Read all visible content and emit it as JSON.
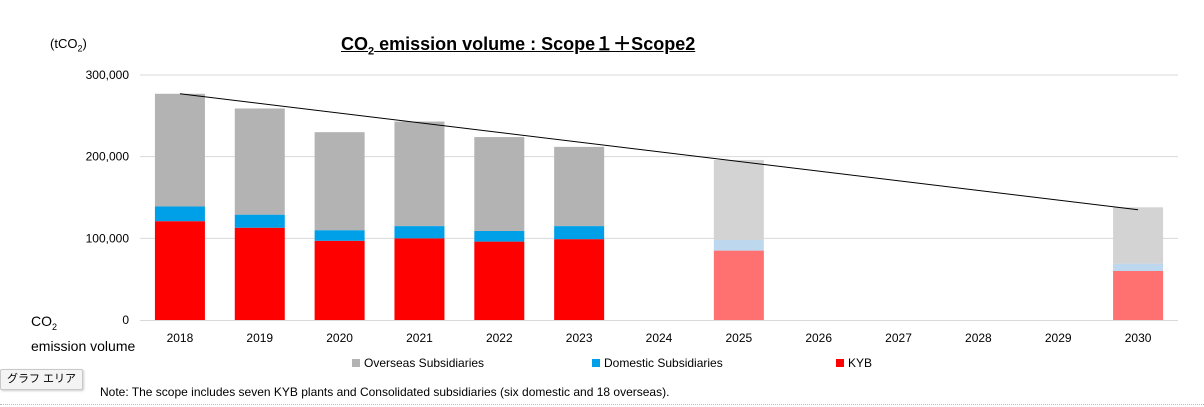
{
  "chart_data": {
    "type": "bar",
    "stacked": true,
    "title_parts": {
      "pre": "CO",
      "sub": "2",
      "post": " emission volume : Scope１＋Scope2"
    },
    "unit_label": {
      "pre": "(tCO",
      "sub": "2",
      "post": ")"
    },
    "ylabel": {
      "line1_pre": "CO",
      "line1_sub": "2",
      "line2": "emission volume"
    },
    "categories": [
      "2018",
      "2019",
      "2020",
      "2021",
      "2022",
      "2023",
      "2024",
      "2025",
      "2026",
      "2027",
      "2028",
      "2029",
      "2030"
    ],
    "ylim": [
      0,
      300000
    ],
    "yticks": [
      0,
      100000,
      200000,
      300000
    ],
    "ytick_labels": [
      "0",
      "100,000",
      "200,000",
      "300,000"
    ],
    "grid": true,
    "legend_position": "bottom",
    "series": [
      {
        "name": "KYB",
        "color": "#ff0000",
        "target_color": "#ff7070",
        "values": [
          121000,
          113000,
          97000,
          100000,
          96000,
          99000,
          null,
          85000,
          null,
          null,
          null,
          null,
          60000
        ]
      },
      {
        "name": "Domestic Subsidiaries",
        "color": "#00a0e9",
        "target_color": "#bdd7ee",
        "values": [
          18000,
          16000,
          13000,
          15000,
          13000,
          16000,
          null,
          13000,
          null,
          null,
          null,
          null,
          9000
        ]
      },
      {
        "name": "Overseas Subsidiaries",
        "color": "#b3b3b3",
        "target_color": "#d3d3d3",
        "values": [
          138000,
          130000,
          120000,
          128000,
          115000,
          97000,
          null,
          98000,
          null,
          null,
          null,
          null,
          69000
        ]
      }
    ],
    "target_categories": [
      "2025",
      "2030"
    ],
    "trend_line": {
      "from": {
        "x": "2018",
        "y": 277000
      },
      "to": {
        "x": "2030",
        "y": 135000
      },
      "color": "#000000"
    },
    "legend_order": [
      "Overseas Subsidiaries",
      "Domestic Subsidiaries",
      "KYB"
    ]
  },
  "note": "Note: The scope includes seven KYB plants and Consolidated subsidiaries (six domestic and 18 overseas).",
  "graph_area_label": "グラフ エリア"
}
